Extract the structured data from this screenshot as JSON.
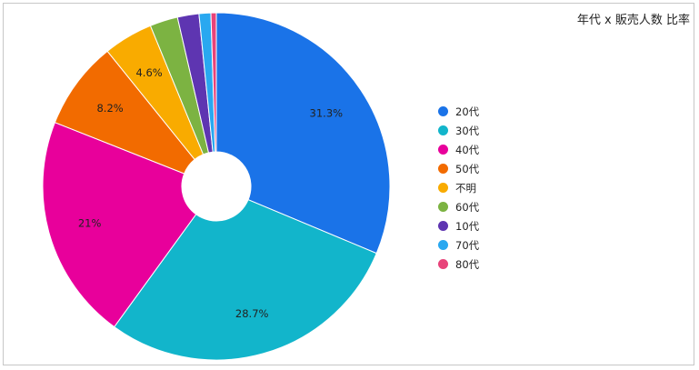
{
  "chart_data": {
    "type": "pie",
    "title": "年代 x 販売人数 比率",
    "donut": true,
    "legend_position": "right",
    "slices": [
      {
        "label": "20代",
        "value": 31.3,
        "display": "31.3%",
        "color": "#1a73e8"
      },
      {
        "label": "30代",
        "value": 28.7,
        "display": "28.7%",
        "color": "#12b5cb"
      },
      {
        "label": "40代",
        "value": 21.0,
        "display": "21%",
        "color": "#e8009b"
      },
      {
        "label": "50代",
        "value": 8.2,
        "display": "8.2%",
        "color": "#f26b00"
      },
      {
        "label": "不明",
        "value": 4.6,
        "display": "4.6%",
        "color": "#f9ab00"
      },
      {
        "label": "60代",
        "value": 2.6,
        "display": "",
        "color": "#7cb342"
      },
      {
        "label": "10代",
        "value": 2.0,
        "display": "",
        "color": "#5e35b1"
      },
      {
        "label": "70代",
        "value": 1.1,
        "display": "",
        "color": "#29a8f0"
      },
      {
        "label": "80代",
        "value": 0.5,
        "display": "",
        "color": "#e8437a"
      }
    ]
  }
}
